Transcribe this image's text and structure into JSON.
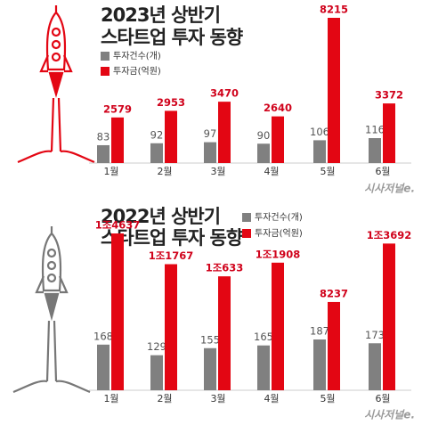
{
  "chart_data": [
    {
      "type": "bar",
      "title": [
        "2023년 상반기",
        "스타트업 투자 동향"
      ],
      "categories": [
        "1월",
        "2월",
        "3월",
        "4월",
        "5월",
        "6월"
      ],
      "series": [
        {
          "name": "투자건수(개)",
          "color": "#808080",
          "values": [
            83,
            92,
            97,
            90,
            106,
            116
          ]
        },
        {
          "name": "투자금(억원)",
          "color": "#e30613",
          "values": [
            2579,
            2953,
            3470,
            2640,
            8215,
            3372
          ]
        }
      ],
      "source": "시사저널e."
    },
    {
      "type": "bar",
      "title": [
        "2022년 상반기",
        "스타트업 투자 동향"
      ],
      "categories": [
        "1월",
        "2월",
        "3월",
        "4월",
        "5월",
        "6월"
      ],
      "series": [
        {
          "name": "투자건수(개)",
          "color": "#808080",
          "values": [
            168,
            129,
            155,
            165,
            187,
            173
          ]
        },
        {
          "name": "투자금(억원)",
          "color": "#e30613",
          "values": [
            14637,
            11767,
            10633,
            11908,
            8237,
            13692
          ],
          "value_labels": [
            "1조4637",
            "1조1767",
            "1조633",
            "1조1908",
            "8237",
            "1조3692"
          ]
        }
      ],
      "source": "시사저널e."
    }
  ]
}
